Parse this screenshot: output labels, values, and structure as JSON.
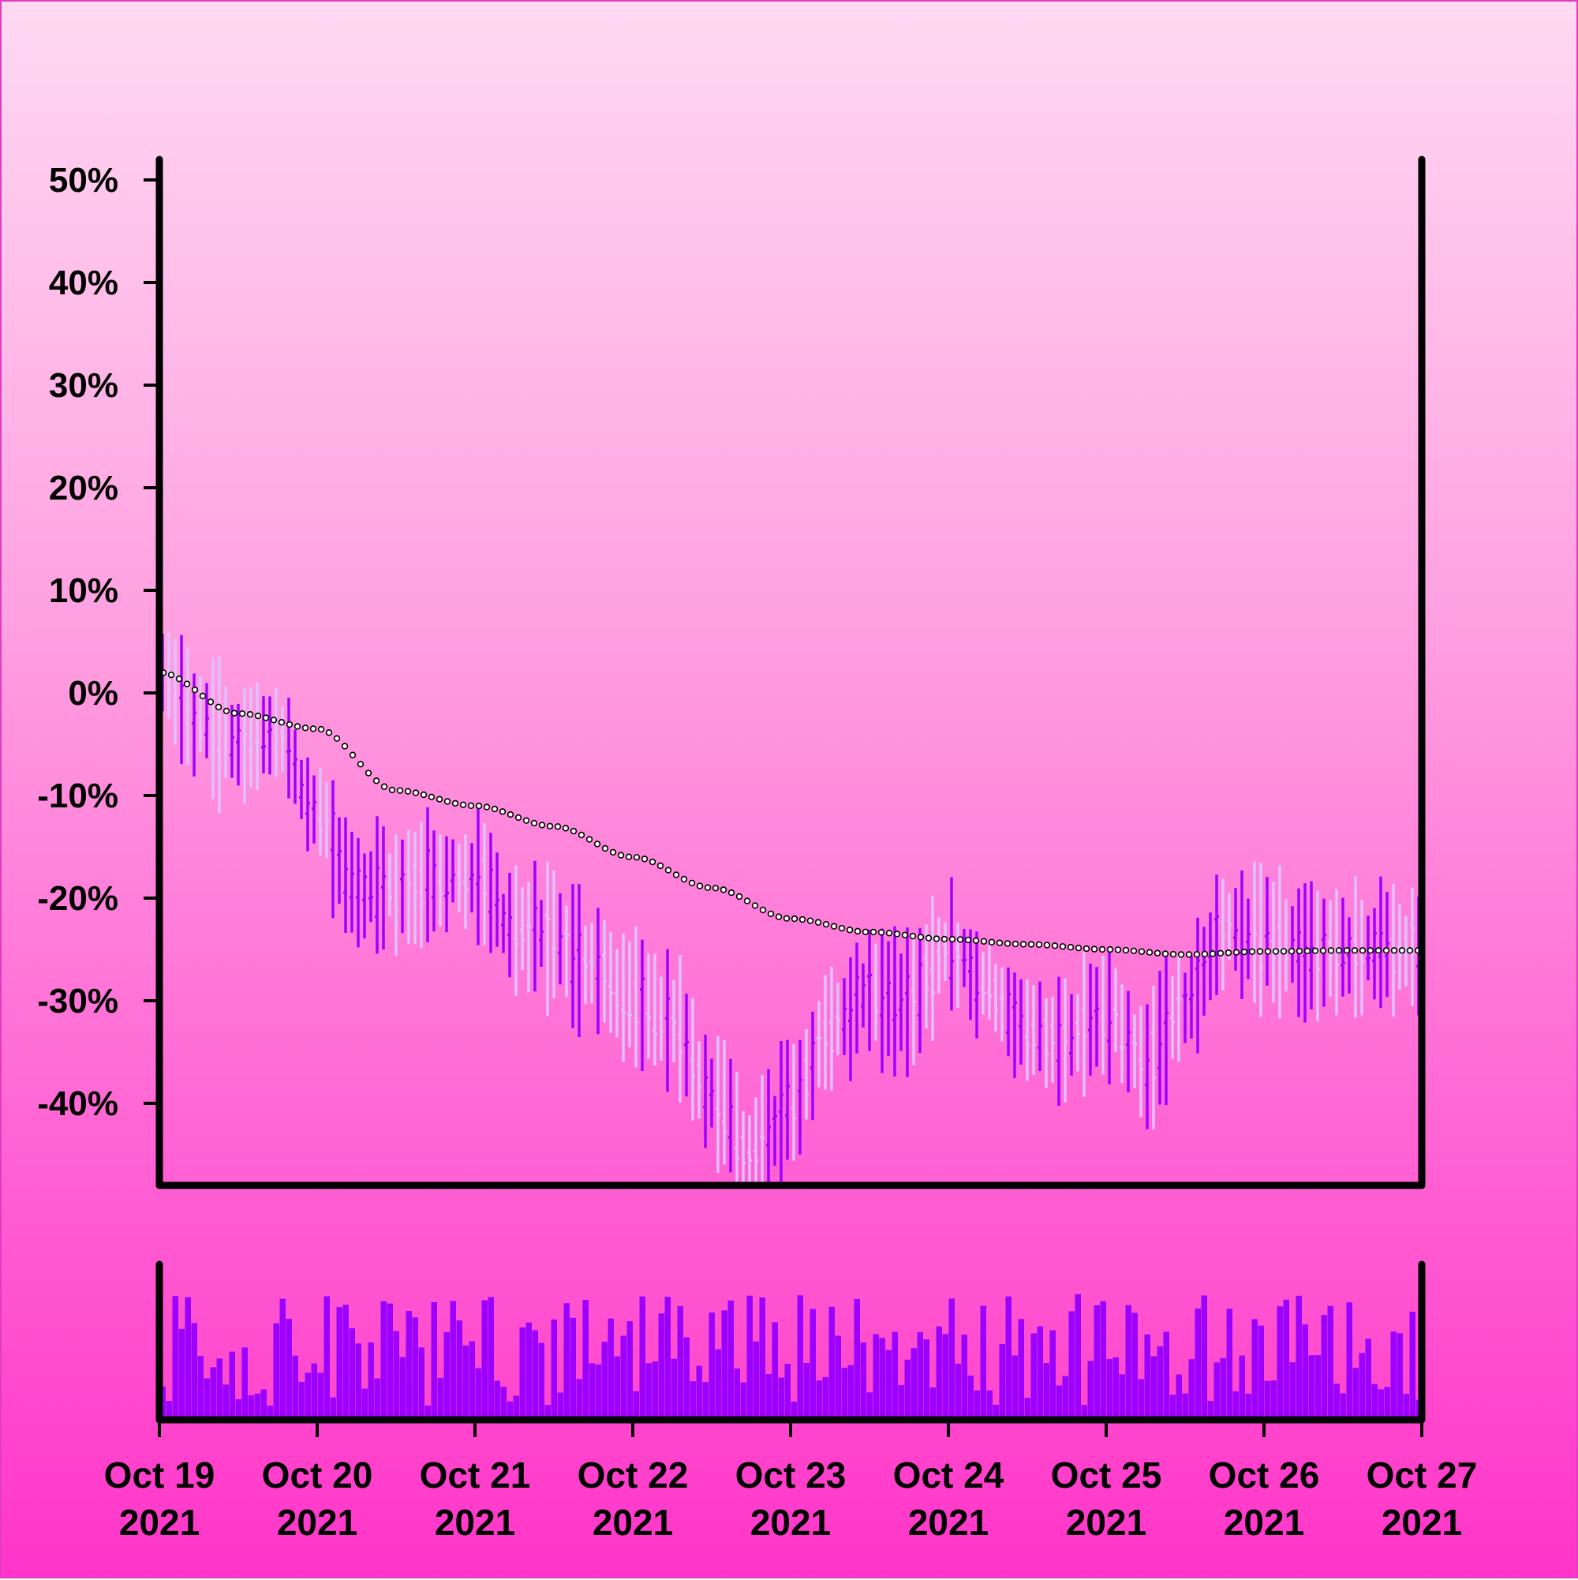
{
  "chart_data": {
    "type": "ohlc",
    "title": "",
    "xlabel": "",
    "ylabel": "",
    "y_unit": "%",
    "ylim": [
      -48,
      52
    ],
    "y_ticks": [
      50,
      40,
      30,
      20,
      10,
      0,
      -10,
      -20,
      -30,
      -40
    ],
    "y_tick_labels": [
      "50%",
      "40%",
      "30%",
      "20%",
      "10%",
      "0%",
      "-10%",
      "-20%",
      "-30%",
      "-40%"
    ],
    "xlim": [
      "2021-10-19",
      "2021-10-27"
    ],
    "x_ticks": [
      {
        "date": "2021-10-19",
        "line1": "Oct 19",
        "line2": "2021"
      },
      {
        "date": "2021-10-20",
        "line1": "Oct 20",
        "line2": "2021"
      },
      {
        "date": "2021-10-21",
        "line1": "Oct 21",
        "line2": "2021"
      },
      {
        "date": "2021-10-22",
        "line1": "Oct 22",
        "line2": "2021"
      },
      {
        "date": "2021-10-23",
        "line1": "Oct 23",
        "line2": "2021"
      },
      {
        "date": "2021-10-24",
        "line1": "Oct 24",
        "line2": "2021"
      },
      {
        "date": "2021-10-25",
        "line1": "Oct 25",
        "line2": "2021"
      },
      {
        "date": "2021-10-26",
        "line1": "Oct 26",
        "line2": "2021"
      },
      {
        "date": "2021-10-27",
        "line1": "Oct 27",
        "line2": "2021"
      }
    ],
    "price_trend": [
      {
        "x": "2021-10-19",
        "y": 2
      },
      {
        "x": "2021-10-19T12:00",
        "y": -2
      },
      {
        "x": "2021-10-20",
        "y": -3.5
      },
      {
        "x": "2021-10-20T12:00",
        "y": -9.5
      },
      {
        "x": "2021-10-21",
        "y": -11
      },
      {
        "x": "2021-10-21T12:00",
        "y": -13
      },
      {
        "x": "2021-10-22",
        "y": -16
      },
      {
        "x": "2021-10-22T12:00",
        "y": -19
      },
      {
        "x": "2021-10-23",
        "y": -22
      },
      {
        "x": "2021-10-23T12:00",
        "y": -23.3
      },
      {
        "x": "2021-10-24",
        "y": -24
      },
      {
        "x": "2021-10-24T12:00",
        "y": -24.5
      },
      {
        "x": "2021-10-25",
        "y": -25
      },
      {
        "x": "2021-10-25T12:00",
        "y": -25.5
      },
      {
        "x": "2021-10-26",
        "y": -25.2
      },
      {
        "x": "2021-10-26T12:00",
        "y": -25.1
      },
      {
        "x": "2021-10-27",
        "y": -25.1
      }
    ],
    "close_trend": [
      {
        "x": "2021-10-19",
        "y": 2
      },
      {
        "x": "2021-10-19T06:00",
        "y": -3
      },
      {
        "x": "2021-10-19T12:00",
        "y": -5
      },
      {
        "x": "2021-10-19T18:00",
        "y": -4
      },
      {
        "x": "2021-10-20",
        "y": -12
      },
      {
        "x": "2021-10-20T06:00",
        "y": -19
      },
      {
        "x": "2021-10-20T12:00",
        "y": -19
      },
      {
        "x": "2021-10-20T18:00",
        "y": -18
      },
      {
        "x": "2021-10-21",
        "y": -18
      },
      {
        "x": "2021-10-21T06:00",
        "y": -23
      },
      {
        "x": "2021-10-21T12:00",
        "y": -24
      },
      {
        "x": "2021-10-21T18:00",
        "y": -27
      },
      {
        "x": "2021-10-22",
        "y": -30
      },
      {
        "x": "2021-10-22T06:00",
        "y": -32
      },
      {
        "x": "2021-10-22T12:00",
        "y": -39
      },
      {
        "x": "2021-10-22T18:00",
        "y": -45
      },
      {
        "x": "2021-10-23",
        "y": -40
      },
      {
        "x": "2021-10-23T06:00",
        "y": -33
      },
      {
        "x": "2021-10-23T12:00",
        "y": -29
      },
      {
        "x": "2021-10-23T18:00",
        "y": -30
      },
      {
        "x": "2021-10-24",
        "y": -25
      },
      {
        "x": "2021-10-24T06:00",
        "y": -29
      },
      {
        "x": "2021-10-24T12:00",
        "y": -33
      },
      {
        "x": "2021-10-24T18:00",
        "y": -34
      },
      {
        "x": "2021-10-25",
        "y": -31
      },
      {
        "x": "2021-10-25T06:00",
        "y": -36
      },
      {
        "x": "2021-10-25T12:00",
        "y": -30
      },
      {
        "x": "2021-10-25T18:00",
        "y": -23
      },
      {
        "x": "2021-10-26",
        "y": -24
      },
      {
        "x": "2021-10-26T06:00",
        "y": -25
      },
      {
        "x": "2021-10-26T12:00",
        "y": -25
      },
      {
        "x": "2021-10-26T18:00",
        "y": -25
      },
      {
        "x": "2021-10-27",
        "y": -25
      }
    ],
    "candle_colors": {
      "up": "#a000ff",
      "down": "#e0c0ff"
    },
    "volume": {
      "color": "#9b00ff"
    },
    "colors": {
      "trend_marker_fill": "#ffffff",
      "trend_marker_stroke": "#000000",
      "axis": "#000000"
    }
  }
}
